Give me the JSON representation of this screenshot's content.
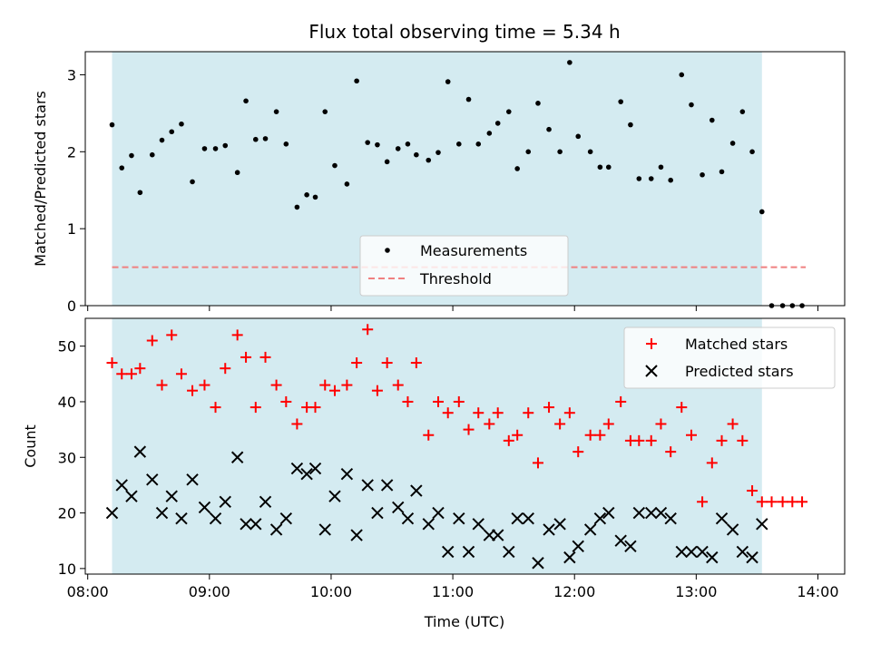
{
  "chart_data": {
    "type": "scatter",
    "title": "Flux total observing time = 5.34 h",
    "xlabel": "Time (UTC)",
    "x_ticks": [
      "08:00",
      "09:00",
      "10:00",
      "11:00",
      "12:00",
      "13:00",
      "14:00"
    ],
    "xlim_hours": [
      7.98,
      14.22
    ],
    "observing_window_hours": [
      8.2,
      13.54
    ],
    "colors": {
      "window": "#d4ebf1",
      "measurement": "#000000",
      "threshold": "#f08080",
      "matched": "#ff0000",
      "predicted": "#000000"
    },
    "top": {
      "ylabel": "Matched/Predicted stars",
      "ylim": [
        0,
        3.3
      ],
      "y_ticks": [
        "0",
        "1",
        "2",
        "3"
      ],
      "threshold": 0.5,
      "legend": {
        "placement": "lower-center",
        "entries": [
          "Measurements",
          "Threshold"
        ]
      },
      "series": [
        {
          "name": "Measurements",
          "x": [
            8.2,
            8.28,
            8.36,
            8.43,
            8.53,
            8.61,
            8.69,
            8.77,
            8.86,
            8.96,
            9.05,
            9.13,
            9.23,
            9.3,
            9.38,
            9.46,
            9.55,
            9.63,
            9.72,
            9.8,
            9.87,
            9.95,
            10.03,
            10.13,
            10.21,
            10.3,
            10.38,
            10.46,
            10.55,
            10.63,
            10.7,
            10.8,
            10.88,
            10.96,
            11.05,
            11.13,
            11.21,
            11.3,
            11.37,
            11.46,
            11.53,
            11.62,
            11.7,
            11.79,
            11.88,
            11.96,
            12.03,
            12.13,
            12.21,
            12.28,
            12.38,
            12.46,
            12.53,
            12.63,
            12.71,
            12.79,
            12.88,
            12.96,
            13.05,
            13.13,
            13.21,
            13.3,
            13.38,
            13.46,
            13.54,
            13.62,
            13.71,
            13.79,
            13.87
          ],
          "y": [
            2.35,
            1.79,
            1.95,
            1.47,
            1.96,
            2.15,
            2.26,
            2.36,
            1.61,
            2.04,
            2.04,
            2.08,
            1.73,
            2.66,
            2.16,
            2.17,
            2.52,
            2.1,
            1.28,
            1.44,
            1.41,
            2.52,
            1.82,
            1.58,
            2.92,
            2.12,
            2.09,
            1.87,
            2.04,
            2.1,
            1.96,
            1.89,
            1.99,
            2.91,
            2.1,
            2.68,
            2.1,
            2.24,
            2.37,
            2.52,
            1.78,
            2.0,
            2.63,
            2.29,
            2.0,
            3.16,
            2.2,
            2.0,
            1.8,
            1.8,
            2.65,
            2.35,
            1.65,
            1.65,
            1.8,
            1.63,
            3.0,
            2.61,
            1.7,
            2.41,
            1.74,
            2.11,
            2.52,
            2.0,
            1.22,
            0.0,
            0.0,
            0.0,
            0.0
          ]
        }
      ]
    },
    "bottom": {
      "ylabel": "Count",
      "ylim": [
        9,
        55
      ],
      "y_ticks": [
        "10",
        "20",
        "30",
        "40",
        "50"
      ],
      "legend": {
        "placement": "upper-right",
        "entries": [
          "Matched stars",
          "Predicted stars"
        ]
      },
      "series": [
        {
          "name": "Matched stars",
          "x": [
            8.2,
            8.28,
            8.36,
            8.43,
            8.53,
            8.61,
            8.69,
            8.77,
            8.86,
            8.96,
            9.05,
            9.13,
            9.23,
            9.3,
            9.38,
            9.46,
            9.55,
            9.63,
            9.72,
            9.8,
            9.87,
            9.95,
            10.03,
            10.13,
            10.21,
            10.3,
            10.38,
            10.46,
            10.55,
            10.63,
            10.7,
            10.8,
            10.88,
            10.96,
            11.05,
            11.13,
            11.21,
            11.3,
            11.37,
            11.46,
            11.53,
            11.62,
            11.7,
            11.79,
            11.88,
            11.96,
            12.03,
            12.13,
            12.21,
            12.28,
            12.38,
            12.46,
            12.53,
            12.63,
            12.71,
            12.79,
            12.88,
            12.96,
            13.05,
            13.13,
            13.21,
            13.3,
            13.38,
            13.46,
            13.54,
            13.62,
            13.71,
            13.79,
            13.87
          ],
          "y": [
            47,
            45,
            45,
            46,
            51,
            43,
            52,
            45,
            42,
            43,
            39,
            46,
            52,
            48,
            39,
            48,
            43,
            40,
            36,
            39,
            39,
            43,
            42,
            43,
            47,
            53,
            42,
            47,
            43,
            40,
            47,
            34,
            40,
            38,
            40,
            35,
            38,
            36,
            38,
            33,
            34,
            38,
            29,
            39,
            36,
            38,
            31,
            34,
            34,
            36,
            40,
            33,
            33,
            33,
            36,
            31,
            39,
            34,
            22,
            29,
            33,
            36,
            33,
            24,
            22,
            22,
            22,
            22,
            22
          ]
        },
        {
          "name": "Predicted stars",
          "x": [
            8.2,
            8.28,
            8.36,
            8.43,
            8.53,
            8.61,
            8.69,
            8.77,
            8.86,
            8.96,
            9.05,
            9.13,
            9.23,
            9.3,
            9.38,
            9.46,
            9.55,
            9.63,
            9.72,
            9.8,
            9.87,
            9.95,
            10.03,
            10.13,
            10.21,
            10.3,
            10.38,
            10.46,
            10.55,
            10.63,
            10.7,
            10.8,
            10.88,
            10.96,
            11.05,
            11.13,
            11.21,
            11.3,
            11.37,
            11.46,
            11.53,
            11.62,
            11.7,
            11.79,
            11.88,
            11.96,
            12.03,
            12.13,
            12.21,
            12.28,
            12.38,
            12.46,
            12.53,
            12.63,
            12.71,
            12.79,
            12.88,
            12.96,
            13.05,
            13.13,
            13.21,
            13.3,
            13.38,
            13.46,
            13.54
          ],
          "y": [
            20,
            25,
            23,
            31,
            26,
            20,
            23,
            19,
            26,
            21,
            19,
            22,
            30,
            18,
            18,
            22,
            17,
            19,
            28,
            27,
            28,
            17,
            23,
            27,
            16,
            25,
            20,
            25,
            21,
            19,
            24,
            18,
            20,
            13,
            19,
            13,
            18,
            16,
            16,
            13,
            19,
            19,
            11,
            17,
            18,
            12,
            14,
            17,
            19,
            20,
            15,
            14,
            20,
            20,
            20,
            19,
            13,
            13,
            13,
            12,
            19,
            17,
            13,
            12,
            18
          ]
        }
      ]
    }
  }
}
